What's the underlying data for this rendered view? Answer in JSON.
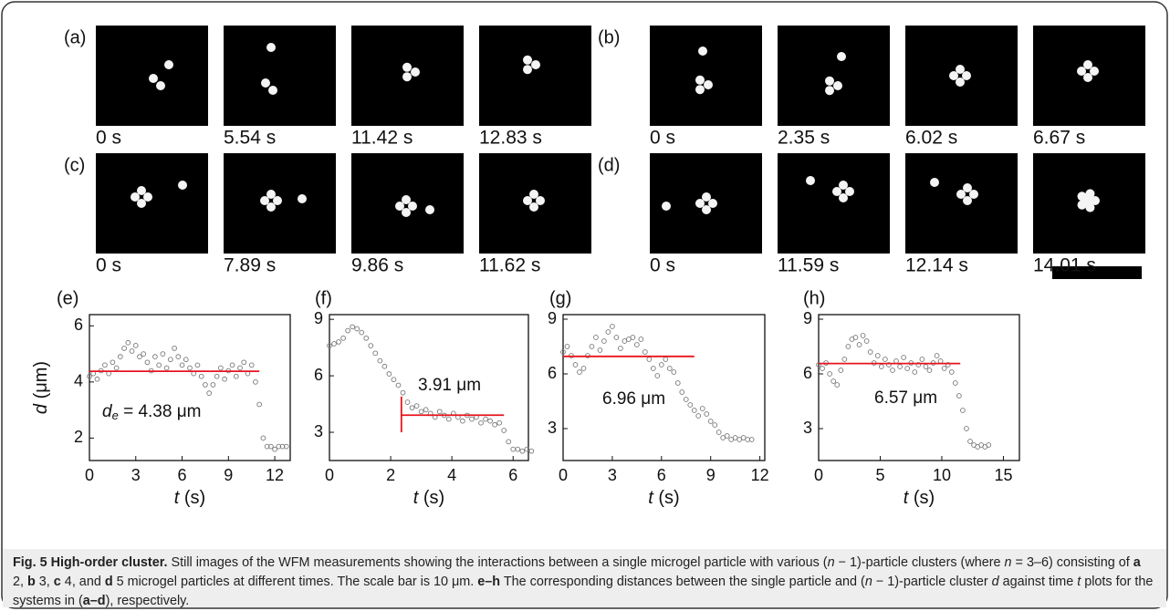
{
  "panels": [
    {
      "label": "(a)",
      "times": [
        "0 s",
        "5.54 s",
        "11.42 s",
        "12.83 s"
      ]
    },
    {
      "label": "(b)",
      "times": [
        "0 s",
        "2.35 s",
        "6.02 s",
        "6.67 s"
      ]
    },
    {
      "label": "(c)",
      "times": [
        "0 s",
        "7.89 s",
        "9.86 s",
        "11.62 s"
      ]
    },
    {
      "label": "(d)",
      "times": [
        "0 s",
        "11.59 s",
        "12.14 s",
        "14.01 s"
      ]
    }
  ],
  "chart_data": [
    {
      "type": "scatter",
      "label": "(e)",
      "ylabel": {
        "symbol": "d",
        "unit": "(μm)"
      },
      "xlabel": {
        "symbol": "t",
        "unit": "(s)"
      },
      "xlim": [
        0,
        13
      ],
      "ylim": [
        1.2,
        6.4
      ],
      "xticks": [
        0,
        3,
        6,
        9,
        12
      ],
      "yticks": [
        2,
        4,
        6
      ],
      "marker_color": "#777777",
      "x": [
        0,
        0.25,
        0.5,
        0.75,
        1,
        1.25,
        1.5,
        1.75,
        2,
        2.25,
        2.5,
        2.75,
        3,
        3.25,
        3.5,
        3.75,
        4,
        4.25,
        4.5,
        4.75,
        5,
        5.25,
        5.5,
        5.75,
        6,
        6.25,
        6.5,
        6.75,
        7,
        7.25,
        7.5,
        7.75,
        8,
        8.25,
        8.5,
        8.75,
        9,
        9.25,
        9.5,
        9.75,
        10,
        10.25,
        10.5,
        10.75,
        11,
        11.25,
        11.5,
        11.75,
        12,
        12.25,
        12.5,
        12.75
      ],
      "values": [
        4.2,
        4.3,
        4.1,
        4.4,
        4.6,
        4.3,
        4.7,
        4.5,
        4.9,
        5.2,
        5.4,
        5.1,
        5.3,
        4.9,
        5.0,
        4.7,
        4.4,
        4.9,
        4.6,
        5.0,
        4.5,
        4.8,
        5.2,
        4.9,
        4.6,
        4.8,
        4.5,
        4.3,
        4.6,
        4.2,
        3.9,
        3.6,
        3.9,
        4.2,
        4.5,
        4.1,
        4.4,
        4.6,
        4.2,
        4.5,
        4.7,
        4.3,
        4.6,
        4.0,
        3.2,
        2.0,
        1.7,
        1.7,
        1.6,
        1.7,
        1.7,
        1.7
      ],
      "fit": {
        "y": 4.38,
        "x": [
          0,
          11
        ],
        "color": "#e8141b",
        "label": {
          "symbol": "d",
          "sub": "e",
          "text": " = 4.38 μm"
        }
      }
    },
    {
      "type": "scatter",
      "label": "(f)",
      "xlabel": {
        "symbol": "t",
        "unit": "(s)"
      },
      "xlim": [
        0,
        6.5
      ],
      "ylim": [
        1.5,
        9.25
      ],
      "xticks": [
        0,
        2,
        4,
        6
      ],
      "yticks": [
        3,
        6,
        9
      ],
      "marker_color": "#777777",
      "x": [
        0,
        0.15,
        0.3,
        0.45,
        0.6,
        0.75,
        0.9,
        1.05,
        1.2,
        1.35,
        1.5,
        1.65,
        1.8,
        1.95,
        2.1,
        2.25,
        2.4,
        2.55,
        2.7,
        2.85,
        3,
        3.15,
        3.3,
        3.45,
        3.6,
        3.75,
        3.9,
        4.05,
        4.2,
        4.35,
        4.5,
        4.65,
        4.8,
        4.95,
        5.1,
        5.25,
        5.4,
        5.55,
        5.7,
        5.85,
        6,
        6.15,
        6.3,
        6.45,
        6.6
      ],
      "values": [
        7.6,
        7.7,
        7.8,
        8.0,
        8.4,
        8.6,
        8.5,
        8.3,
        8.0,
        7.6,
        7.2,
        6.8,
        6.5,
        6.1,
        5.8,
        5.5,
        5.1,
        4.6,
        4.3,
        4.4,
        4.1,
        4.2,
        4.0,
        3.8,
        4.1,
        3.9,
        3.7,
        4.0,
        3.8,
        3.6,
        3.9,
        3.7,
        3.8,
        3.5,
        3.7,
        3.6,
        3.4,
        3.5,
        3.1,
        2.5,
        2.1,
        2.1,
        2.0,
        2.1,
        2.0
      ],
      "fit": {
        "y": 3.91,
        "x": [
          2.35,
          5.7
        ],
        "color": "#e8141b",
        "label": "3.91 μm"
      },
      "vline": {
        "x": 2.35,
        "y": [
          3.0,
          4.9
        ]
      }
    },
    {
      "type": "scatter",
      "label": "(g)",
      "xlabel": {
        "symbol": "t",
        "unit": "(s)"
      },
      "xlim": [
        0,
        12.3
      ],
      "ylim": [
        1.25,
        9.25
      ],
      "xticks": [
        0,
        3,
        6,
        9,
        12
      ],
      "yticks": [
        3,
        6,
        9
      ],
      "marker_color": "#777777",
      "x": [
        0,
        0.25,
        0.5,
        0.75,
        1,
        1.25,
        1.5,
        1.75,
        2,
        2.25,
        2.5,
        2.75,
        3,
        3.25,
        3.5,
        3.75,
        4,
        4.25,
        4.5,
        4.75,
        5,
        5.25,
        5.5,
        5.75,
        6,
        6.25,
        6.5,
        6.75,
        7,
        7.25,
        7.5,
        7.75,
        8,
        8.25,
        8.5,
        8.75,
        9,
        9.25,
        9.5,
        9.75,
        10,
        10.25,
        10.5,
        10.75,
        11,
        11.25,
        11.5
      ],
      "values": [
        7.2,
        7.5,
        7.0,
        6.5,
        6.1,
        6.3,
        7.0,
        7.5,
        8.0,
        7.3,
        7.8,
        8.3,
        8.6,
        8.0,
        7.4,
        7.8,
        7.9,
        8.0,
        7.6,
        7.9,
        7.2,
        6.8,
        6.3,
        5.9,
        6.5,
        6.8,
        6.3,
        6.1,
        5.5,
        5.0,
        4.6,
        4.3,
        4.0,
        3.7,
        4.1,
        3.8,
        3.4,
        3.2,
        2.8,
        2.5,
        2.6,
        2.4,
        2.5,
        2.4,
        2.5,
        2.4,
        2.4
      ],
      "fit": {
        "y": 6.96,
        "x": [
          0,
          8
        ],
        "color": "#e8141b",
        "label": "6.96 μm"
      }
    },
    {
      "type": "scatter",
      "label": "(h)",
      "xlabel": {
        "symbol": "t",
        "unit": "(s)"
      },
      "xlim": [
        0,
        16.3
      ],
      "ylim": [
        1.25,
        9.25
      ],
      "xticks": [
        0,
        5,
        10,
        15
      ],
      "yticks": [
        3,
        6,
        9
      ],
      "marker_color": "#777777",
      "x": [
        0,
        0.3,
        0.6,
        0.9,
        1.2,
        1.5,
        1.8,
        2.1,
        2.4,
        2.7,
        3,
        3.3,
        3.6,
        3.9,
        4.2,
        4.5,
        4.8,
        5.1,
        5.4,
        5.7,
        6,
        6.3,
        6.6,
        6.9,
        7.2,
        7.5,
        7.8,
        8.1,
        8.4,
        8.7,
        9,
        9.3,
        9.6,
        9.9,
        10.2,
        10.5,
        10.8,
        11.1,
        11.4,
        11.7,
        12,
        12.3,
        12.6,
        12.9,
        13.2,
        13.5,
        13.8
      ],
      "values": [
        6.5,
        6.3,
        6.6,
        6.0,
        5.6,
        5.4,
        6.2,
        6.8,
        7.5,
        7.9,
        8.0,
        7.6,
        8.1,
        7.8,
        7.2,
        6.6,
        7.0,
        6.4,
        6.8,
        6.5,
        6.2,
        6.7,
        6.4,
        6.9,
        6.3,
        6.6,
        6.1,
        6.5,
        6.8,
        6.4,
        6.2,
        6.6,
        7.0,
        6.7,
        6.3,
        6.5,
        6.1,
        5.5,
        4.8,
        4.0,
        3.0,
        2.3,
        2.1,
        2.0,
        2.1,
        2.0,
        2.1
      ],
      "fit": {
        "y": 6.57,
        "x": [
          0,
          11.5
        ],
        "color": "#e8141b",
        "label": "6.57 μm"
      }
    }
  ],
  "caption": {
    "segments": [
      {
        "text": "Fig. 5 High-order cluster.",
        "style": "b"
      },
      {
        "text": " Still images of the WFM measurements showing the interactions between a single microgel particle with various (",
        "style": ""
      },
      {
        "text": "n",
        "style": "i"
      },
      {
        "text": " − 1)-particle clusters (where ",
        "style": ""
      },
      {
        "text": "n",
        "style": "i"
      },
      {
        "text": " = 3–6) consisting of ",
        "style": ""
      },
      {
        "text": "a",
        "style": "b"
      },
      {
        "text": " 2, ",
        "style": ""
      },
      {
        "text": "b",
        "style": "b"
      },
      {
        "text": " 3, ",
        "style": ""
      },
      {
        "text": "c",
        "style": "b"
      },
      {
        "text": " 4, and ",
        "style": ""
      },
      {
        "text": "d",
        "style": "b"
      },
      {
        "text": " 5 microgel particles at different times. The scale bar is 10 μm. ",
        "style": ""
      },
      {
        "text": "e–h",
        "style": "b"
      },
      {
        "text": " The corresponding distances between the single particle and (",
        "style": ""
      },
      {
        "text": "n",
        "style": "i"
      },
      {
        "text": " − 1)-particle cluster ",
        "style": ""
      },
      {
        "text": "d",
        "style": "i"
      },
      {
        "text": " against time ",
        "style": ""
      },
      {
        "text": "t",
        "style": "i"
      },
      {
        "text": " plots for the systems in (",
        "style": ""
      },
      {
        "text": "a–d",
        "style": "b"
      },
      {
        "text": "), respectively.",
        "style": ""
      }
    ]
  }
}
